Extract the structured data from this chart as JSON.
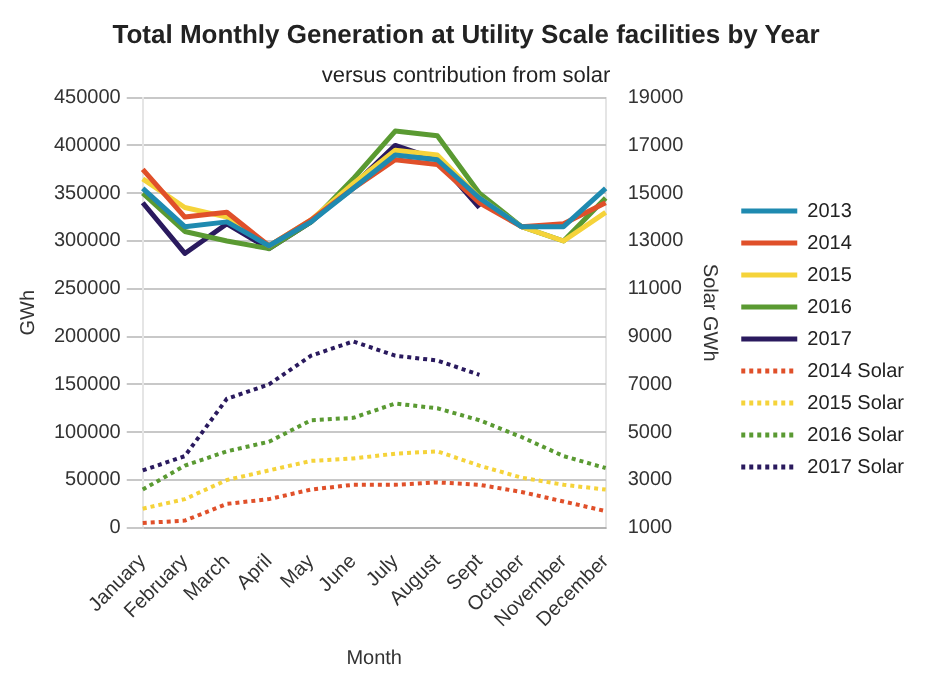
{
  "chart_data": {
    "type": "line",
    "title": "Total Monthly Generation at Utility Scale facilities by Year",
    "subtitle": "versus contribution from solar",
    "xlabel": "Month",
    "ylabel": "GWh",
    "y2label": "Solar GWh",
    "categories": [
      "January",
      "February",
      "March",
      "April",
      "May",
      "June",
      "July",
      "August",
      "Sept",
      "October",
      "November",
      "December"
    ],
    "ylim": [
      0,
      450000
    ],
    "yticks": [
      0,
      50000,
      100000,
      150000,
      200000,
      250000,
      300000,
      350000,
      400000,
      450000
    ],
    "y2lim": [
      1000,
      19000
    ],
    "y2ticks": [
      1000,
      3000,
      5000,
      7000,
      9000,
      11000,
      13000,
      15000,
      17000,
      19000
    ],
    "grid": "y",
    "legend": "right",
    "marker": "none",
    "series": [
      {
        "name": "2013",
        "color": "#1f8ab0",
        "values": [
          355000,
          315000,
          320000,
          295000,
          320000,
          355000,
          390000,
          385000,
          345000,
          315000,
          315000,
          355000
        ]
      },
      {
        "name": "2014",
        "color": "#e0502a",
        "values": [
          375000,
          325000,
          330000,
          295000,
          322000,
          355000,
          385000,
          380000,
          340000,
          315000,
          318000,
          340000
        ]
      },
      {
        "name": "2015",
        "color": "#f5d33a",
        "values": [
          365000,
          335000,
          325000,
          295000,
          322000,
          360000,
          395000,
          390000,
          345000,
          315000,
          300000,
          330000
        ]
      },
      {
        "name": "2016",
        "color": "#5a9a32",
        "values": [
          350000,
          310000,
          300000,
          292000,
          320000,
          365000,
          415000,
          410000,
          350000,
          315000,
          300000,
          345000
        ]
      },
      {
        "name": "2017",
        "color": "#2a1a5e",
        "values": [
          340000,
          287000,
          318000,
          292000,
          320000,
          358000,
          400000,
          385000,
          335000,
          null,
          null,
          null
        ]
      },
      {
        "name": "2014 Solar",
        "color": "#e0502a",
        "axis": "y2",
        "line_style": "dotted",
        "values": [
          1200,
          1300,
          2000,
          2200,
          2600,
          2800,
          2800,
          2900,
          2800,
          2500,
          2100,
          1700
        ]
      },
      {
        "name": "2015 Solar",
        "color": "#f5d33a",
        "axis": "y2",
        "line_style": "dotted",
        "values": [
          1800,
          2200,
          3000,
          3400,
          3800,
          3900,
          4100,
          4200,
          3600,
          3100,
          2800,
          2600
        ]
      },
      {
        "name": "2016 Solar",
        "color": "#5a9a32",
        "axis": "y2",
        "line_style": "dotted",
        "values": [
          2600,
          3600,
          4200,
          4600,
          5500,
          5600,
          6200,
          6000,
          5500,
          4800,
          4000,
          3500
        ]
      },
      {
        "name": "2017 Solar",
        "color": "#2a1a5e",
        "axis": "y2",
        "line_style": "dotted",
        "values": [
          3400,
          4000,
          6400,
          7000,
          8200,
          8800,
          8200,
          8000,
          7400,
          null,
          null,
          null
        ]
      }
    ]
  }
}
